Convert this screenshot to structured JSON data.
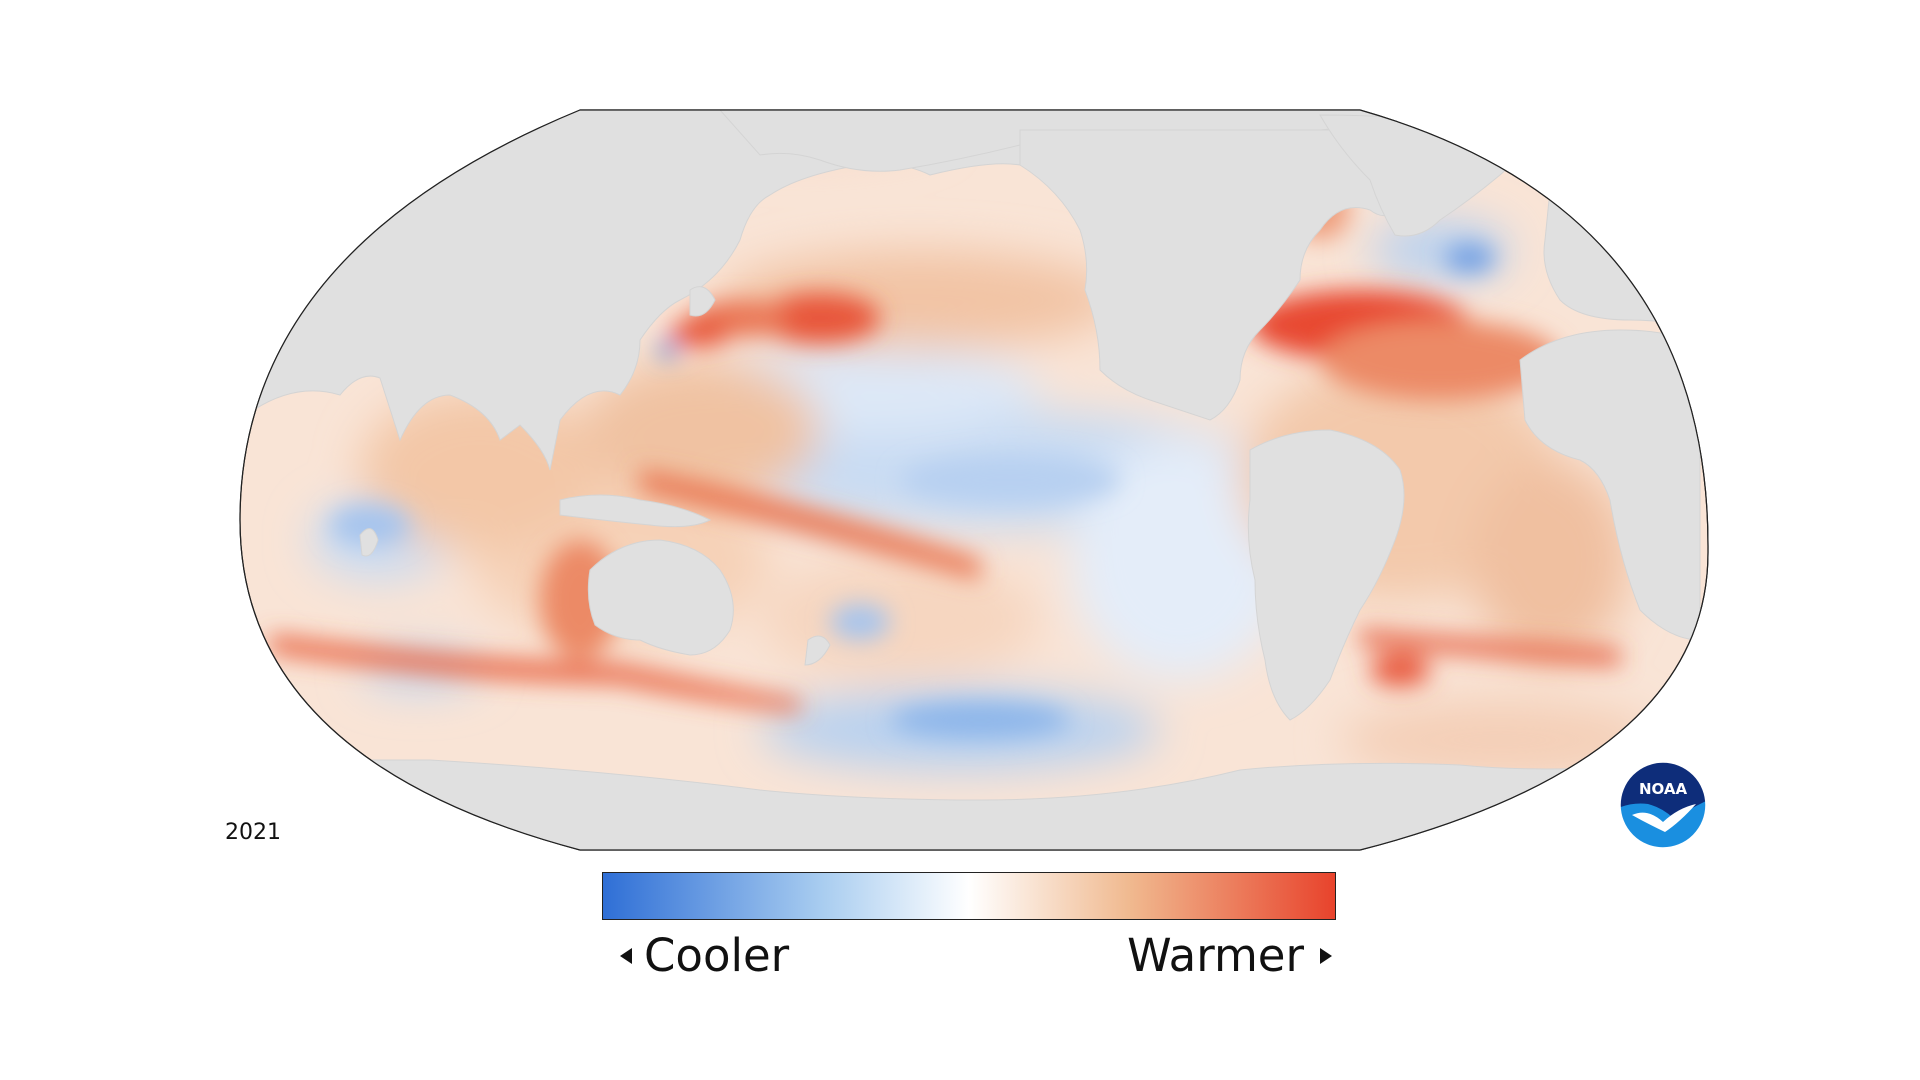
{
  "year": "2021",
  "legend": {
    "cooler_label": "Cooler",
    "warmer_label": "Warmer",
    "cooler_color": "#2f6fd6",
    "neutral_color": "#ffffff",
    "warmer_color": "#e8432c"
  },
  "logo": {
    "text": "NOAA",
    "colors": {
      "top": "#0e2d7a",
      "bottom": "#1a8fe0"
    }
  },
  "map": {
    "projection": "Robinson (Pacific-centered)",
    "land_color": "#e0e0e0",
    "ocean_base_color": "#f7dccb"
  }
}
